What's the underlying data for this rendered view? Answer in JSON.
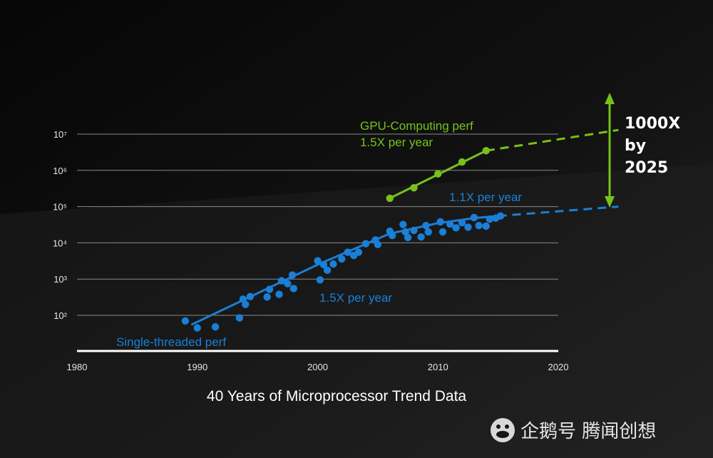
{
  "chart_data": {
    "type": "scatter",
    "title": "40 Years of Microprocessor Trend Data",
    "x_ticks": [
      "1980",
      "1990",
      "2000",
      "2010",
      "2020"
    ],
    "y_ticks": [
      "10⁷",
      "10⁶",
      "10⁵",
      "10⁴",
      "10³",
      "10²"
    ],
    "xlim": [
      1980,
      2020
    ],
    "ylim_log10": [
      1.05,
      7
    ],
    "y_scale": "log",
    "grid": true,
    "colors": {
      "single": "#1a7fd6",
      "gpu": "#76c21a",
      "grid": "#8a8a8a",
      "axis": "#ffffff"
    },
    "series": [
      {
        "name": "Single-threaded perf",
        "points": [
          [
            1989,
            70
          ],
          [
            1990,
            45
          ],
          [
            1991.5,
            48
          ],
          [
            1993.5,
            85
          ],
          [
            1993.8,
            280
          ],
          [
            1994,
            200
          ],
          [
            1994.4,
            330
          ],
          [
            1995.8,
            320
          ],
          [
            1996,
            520
          ],
          [
            1996.8,
            380
          ],
          [
            1997,
            900
          ],
          [
            1997.5,
            750
          ],
          [
            1997.9,
            1300
          ],
          [
            1998,
            550
          ],
          [
            2000,
            3200
          ],
          [
            2000.2,
            950
          ],
          [
            2000.5,
            2500
          ],
          [
            2000.8,
            1750
          ],
          [
            2001.3,
            2600
          ],
          [
            2002,
            3600
          ],
          [
            2002.5,
            5500
          ],
          [
            2003,
            4500
          ],
          [
            2003.4,
            5500
          ],
          [
            2004,
            9500
          ],
          [
            2004.8,
            12000
          ],
          [
            2005,
            9000
          ],
          [
            2006,
            21000
          ],
          [
            2006.2,
            16000
          ],
          [
            2007.1,
            32000
          ],
          [
            2007.3,
            20000
          ],
          [
            2007.5,
            14000
          ],
          [
            2008,
            22000
          ],
          [
            2008.6,
            14500
          ],
          [
            2009,
            30000
          ],
          [
            2009.2,
            20000
          ],
          [
            2010.2,
            38000
          ],
          [
            2010.4,
            20000
          ],
          [
            2011,
            33000
          ],
          [
            2011.5,
            26000
          ],
          [
            2012,
            36000
          ],
          [
            2012.5,
            27000
          ],
          [
            2013,
            50000
          ],
          [
            2013.4,
            30000
          ],
          [
            2014,
            29000
          ],
          [
            2014.3,
            45000
          ],
          [
            2014.8,
            48000
          ],
          [
            2015.2,
            55000
          ]
        ],
        "trend_fit": [
          [
            1989.5,
            55
          ],
          [
            2000,
            2500
          ],
          [
            2006,
            18000
          ],
          [
            2010,
            35000
          ],
          [
            2013,
            48000
          ],
          [
            2015,
            55000
          ]
        ],
        "trend_projection": [
          [
            2015,
            55000
          ],
          [
            2025,
            100000
          ]
        ],
        "annotations": [
          "Single-threaded perf",
          "1.5X per year",
          "1.1X per year"
        ]
      },
      {
        "name": "GPU-Computing perf",
        "points": [
          [
            2006,
            170000
          ],
          [
            2008,
            330000
          ],
          [
            2010,
            800000
          ],
          [
            2012,
            1700000
          ],
          [
            2014,
            3500000
          ]
        ],
        "trend_projection": [
          [
            2014,
            3500000
          ],
          [
            2025,
            13000000
          ]
        ],
        "annotations": [
          "GPU-Computing perf",
          "1.5X per year"
        ]
      }
    ],
    "callout": {
      "line1": "1000X",
      "line2": "by",
      "line3": "2025"
    }
  },
  "watermark": {
    "text": "企鹅号 腾闻创想"
  }
}
